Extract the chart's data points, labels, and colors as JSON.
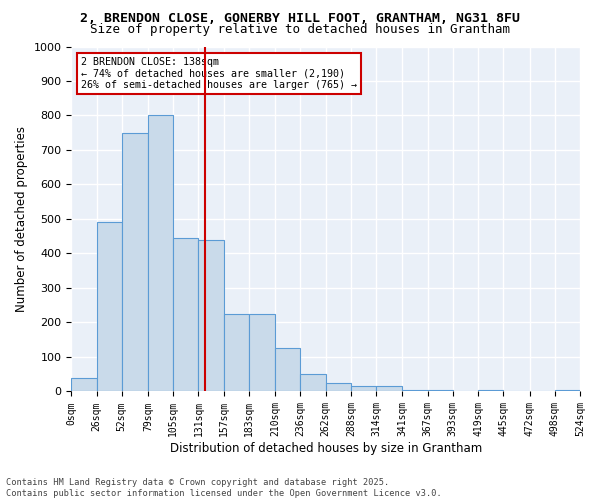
{
  "title_line1": "2, BRENDON CLOSE, GONERBY HILL FOOT, GRANTHAM, NG31 8FU",
  "title_line2": "Size of property relative to detached houses in Grantham",
  "xlabel": "Distribution of detached houses by size in Grantham",
  "ylabel": "Number of detached properties",
  "annotation_line1": "2 BRENDON CLOSE: 138sqm",
  "annotation_line2": "← 74% of detached houses are smaller (2,190)",
  "annotation_line3": "26% of semi-detached houses are larger (765) →",
  "property_line_x": 138,
  "bar_edges": [
    0,
    26,
    52,
    79,
    105,
    131,
    157,
    183,
    210,
    236,
    262,
    288,
    314,
    341,
    367,
    393,
    419,
    445,
    472,
    498,
    524
  ],
  "bar_heights": [
    40,
    490,
    750,
    800,
    445,
    440,
    225,
    225,
    125,
    50,
    25,
    15,
    15,
    5,
    5,
    0,
    5,
    0,
    0,
    5
  ],
  "bar_color": "#c9daea",
  "bar_edge_color": "#5b9bd5",
  "vline_color": "#cc0000",
  "annotation_box_color": "#cc0000",
  "background_color": "#eaf0f8",
  "grid_color": "#ffffff",
  "ylim": [
    0,
    1000
  ],
  "yticks": [
    0,
    100,
    200,
    300,
    400,
    500,
    600,
    700,
    800,
    900,
    1000
  ],
  "tick_labels": [
    "0sqm",
    "26sqm",
    "52sqm",
    "79sqm",
    "105sqm",
    "131sqm",
    "157sqm",
    "183sqm",
    "210sqm",
    "236sqm",
    "262sqm",
    "288sqm",
    "314sqm",
    "341sqm",
    "367sqm",
    "393sqm",
    "419sqm",
    "445sqm",
    "472sqm",
    "498sqm",
    "524sqm"
  ],
  "footer_line1": "Contains HM Land Registry data © Crown copyright and database right 2025.",
  "footer_line2": "Contains public sector information licensed under the Open Government Licence v3.0."
}
